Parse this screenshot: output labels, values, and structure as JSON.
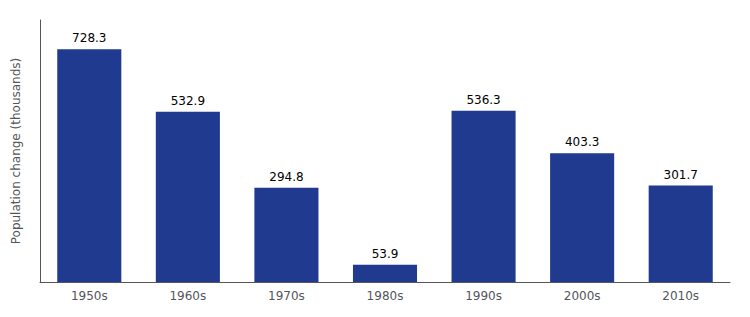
{
  "chart_data": {
    "type": "bar",
    "categories": [
      "1950s",
      "1960s",
      "1970s",
      "1980s",
      "1990s",
      "2000s",
      "2010s"
    ],
    "values": [
      728.3,
      532.9,
      294.8,
      53.9,
      536.3,
      403.3,
      301.7
    ],
    "color": "#1F3A8F",
    "ylabel": "Population change (thousands)",
    "ylim": [
      0,
      820
    ],
    "data_labels": true,
    "tick_labels": "x",
    "grid": false
  }
}
